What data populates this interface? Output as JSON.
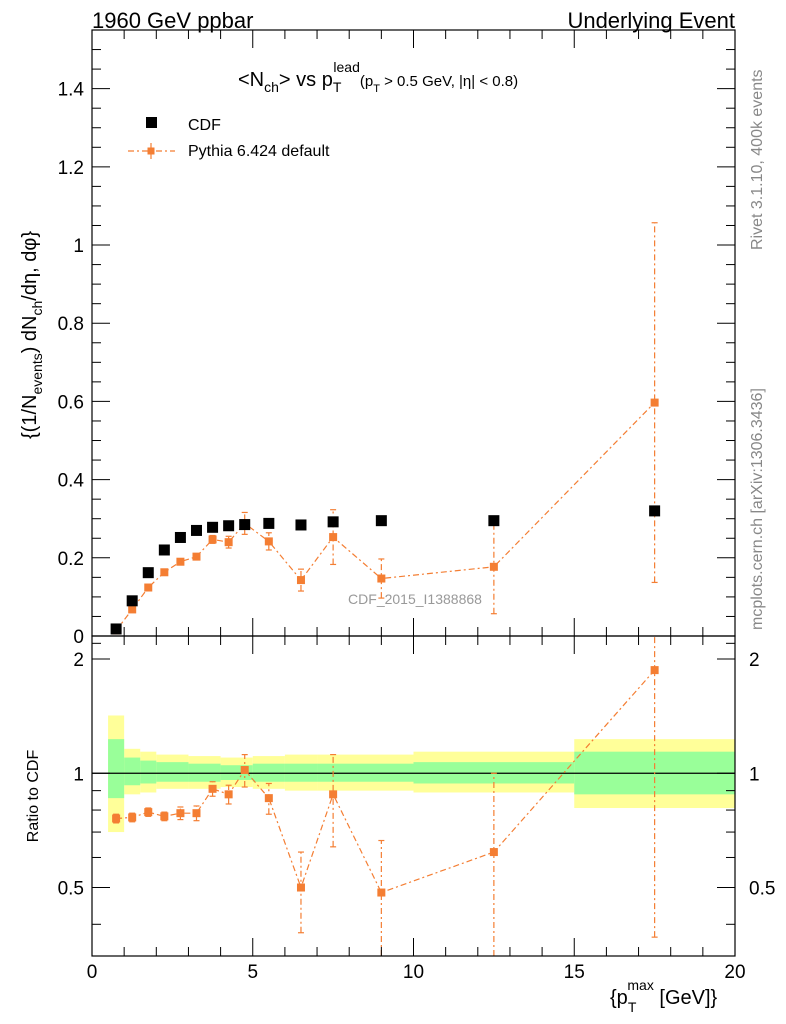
{
  "header": {
    "left": "1960 GeV ppbar",
    "right": "Underlying Event"
  },
  "side_labels": {
    "rivet": "Rivet 3.1.10,  400k events",
    "mcplots": "mcplots.cern.ch [arXiv:1306.3436]"
  },
  "colors": {
    "cdf": "#000000",
    "pythia": "#f47e33",
    "band_inner": "#99ff99",
    "band_outer": "#ffff99"
  },
  "chart_data": [
    {
      "type": "scatter",
      "title": "<N_ch> vs p_T^lead (p_T > 0.5 GeV, |η| < 0.8)",
      "title_parts": {
        "main": "<N",
        "main_sub": "ch",
        "vs": "> vs p",
        "p_sub": "T",
        "p_sup": "lead",
        "cuts_open": "(p",
        "cuts_sub": "T",
        "cuts_rest": " > 0.5 GeV, |η| < 0.8)"
      },
      "ylabel": "{(1/N_events) dN_ch/dη, dφ}",
      "ylabel_parts": {
        "a": "{(1/N",
        "a_sub": "events",
        "b": ") dN",
        "b_sub": "ch",
        "c": "/dη, dφ}"
      },
      "watermark": "CDF_2015_I1388868",
      "xlim": [
        0,
        20
      ],
      "ylim": [
        0,
        1.55
      ],
      "yticks": [
        0,
        0.2,
        0.4,
        0.6,
        0.8,
        1,
        1.2,
        1.4
      ],
      "ytick_labels": [
        "0",
        "0.2",
        "0.4",
        "0.6",
        "0.8",
        "1",
        "1.2",
        "1.4"
      ],
      "legend_position": "top-left",
      "series": [
        {
          "name": "CDF",
          "x": [
            0.75,
            1.25,
            1.75,
            2.25,
            2.75,
            3.25,
            3.75,
            4.25,
            4.75,
            5.5,
            6.5,
            7.5,
            9.0,
            12.5,
            17.5
          ],
          "y": [
            0.018,
            0.09,
            0.162,
            0.22,
            0.252,
            0.27,
            0.278,
            0.282,
            0.285,
            0.288,
            0.284,
            0.292,
            0.295,
            0.295,
            0.32
          ]
        },
        {
          "name": "Pythia 6.424 default",
          "x": [
            0.75,
            1.25,
            1.75,
            2.25,
            2.75,
            3.25,
            3.75,
            4.25,
            4.75,
            5.5,
            6.5,
            7.5,
            9.0,
            12.5,
            17.5
          ],
          "y": [
            0.014,
            0.068,
            0.124,
            0.163,
            0.19,
            0.203,
            0.247,
            0.24,
            0.288,
            0.242,
            0.143,
            0.253,
            0.147,
            0.177,
            0.597
          ],
          "yerr": [
            0.002,
            0.003,
            0.004,
            0.005,
            0.006,
            0.007,
            0.01,
            0.015,
            0.028,
            0.022,
            0.028,
            0.07,
            0.05,
            0.12,
            0.46
          ]
        }
      ]
    },
    {
      "type": "scatter",
      "ylabel": "Ratio to CDF",
      "xlabel": "{p_T^max [GeV]}",
      "xlabel_parts": {
        "open": "{p",
        "sub": "T",
        "sup": "max",
        "rest": " [GeV]}"
      },
      "xlim": [
        0,
        20
      ],
      "ylim": [
        0.33,
        2.3
      ],
      "xticks": [
        0,
        5,
        10,
        15,
        20
      ],
      "xtick_labels": [
        "0",
        "5",
        "10",
        "15",
        "20"
      ],
      "yticks": [
        0.5,
        1,
        2
      ],
      "ytick_labels": [
        "0.5",
        "1",
        "2"
      ],
      "uncertainty_bands": [
        {
          "x0": 0.5,
          "x1": 1.0,
          "inner": [
            0.86,
            1.23
          ],
          "outer": [
            0.7,
            1.42
          ]
        },
        {
          "x0": 1.0,
          "x1": 1.5,
          "inner": [
            0.93,
            1.1
          ],
          "outer": [
            0.88,
            1.16
          ]
        },
        {
          "x0": 1.5,
          "x1": 2.0,
          "inner": [
            0.94,
            1.08
          ],
          "outer": [
            0.89,
            1.14
          ]
        },
        {
          "x0": 2.0,
          "x1": 3.0,
          "inner": [
            0.95,
            1.07
          ],
          "outer": [
            0.91,
            1.12
          ]
        },
        {
          "x0": 3.0,
          "x1": 4.0,
          "inner": [
            0.95,
            1.06
          ],
          "outer": [
            0.91,
            1.11
          ]
        },
        {
          "x0": 4.0,
          "x1": 5.0,
          "inner": [
            0.96,
            1.05
          ],
          "outer": [
            0.92,
            1.1
          ]
        },
        {
          "x0": 5.0,
          "x1": 6.0,
          "inner": [
            0.95,
            1.06
          ],
          "outer": [
            0.91,
            1.11
          ]
        },
        {
          "x0": 6.0,
          "x1": 7.0,
          "inner": [
            0.95,
            1.06
          ],
          "outer": [
            0.9,
            1.12
          ]
        },
        {
          "x0": 7.0,
          "x1": 10.0,
          "inner": [
            0.95,
            1.06
          ],
          "outer": [
            0.9,
            1.12
          ]
        },
        {
          "x0": 10.0,
          "x1": 15.0,
          "inner": [
            0.94,
            1.07
          ],
          "outer": [
            0.89,
            1.14
          ]
        },
        {
          "x0": 15.0,
          "x1": 20.0,
          "inner": [
            0.88,
            1.14
          ],
          "outer": [
            0.81,
            1.23
          ]
        }
      ],
      "series": [
        {
          "name": "Pythia 6.424 default",
          "x": [
            0.75,
            1.25,
            1.75,
            2.25,
            2.75,
            3.25,
            3.75,
            4.25,
            4.75,
            5.5,
            6.5,
            7.5,
            9.0,
            12.5,
            17.5
          ],
          "y": [
            0.76,
            0.765,
            0.79,
            0.77,
            0.785,
            0.785,
            0.91,
            0.88,
            1.02,
            0.86,
            0.5,
            0.88,
            0.485,
            0.62,
            1.87
          ],
          "yerr": [
            0.02,
            0.02,
            0.02,
            0.02,
            0.03,
            0.035,
            0.04,
            0.05,
            0.1,
            0.08,
            0.12,
            0.24,
            0.18,
            0.38,
            1.5
          ]
        }
      ]
    }
  ]
}
